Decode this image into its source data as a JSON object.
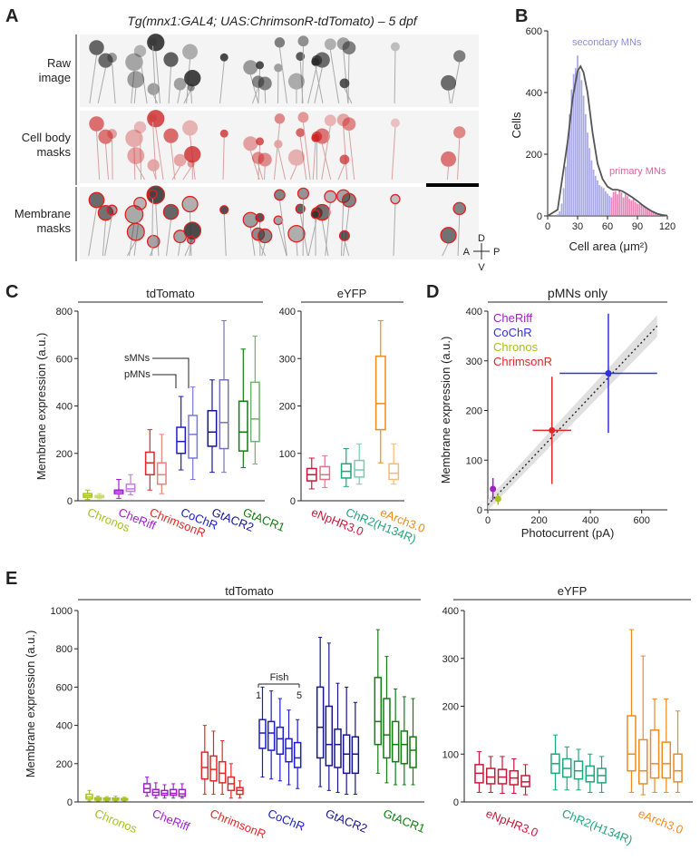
{
  "panels": {
    "A": {
      "letter": "A",
      "title": "Tg(mnx1:GAL4; UAS:ChrimsonR-tdTomato) – 5 dpf",
      "row_labels": [
        [
          "Raw",
          "image"
        ],
        [
          "Cell body",
          "masks"
        ],
        [
          "Membrane",
          "masks"
        ]
      ],
      "compass": {
        "up": "D",
        "down": "V",
        "left": "A",
        "right": "P"
      }
    },
    "B": {
      "letter": "B",
      "ylabel": "Cells",
      "xlabel": "Cell area (μm²)",
      "label_secondary": "secondary MNs",
      "label_primary": "primary MNs"
    },
    "C": {
      "letter": "C",
      "ylabel": "Membrane expression (a.u.)",
      "group_labels": [
        "tdTomato",
        "eYFP"
      ],
      "annot_s": "sMNs",
      "annot_p": "pMNs"
    },
    "D": {
      "letter": "D",
      "title": "pMNs only",
      "ylabel": "Membrane expression (a.u.)",
      "xlabel": "Photocurrent (pA)"
    },
    "E": {
      "letter": "E",
      "ylabel": "Membrane expression (a.u.)",
      "group_labels": [
        "tdTomato",
        "eYFP"
      ],
      "fish_label": "Fish",
      "fish_range": [
        "1",
        "5"
      ]
    }
  },
  "chart_data": [
    {
      "panel": "B",
      "type": "bar",
      "xlim": [
        0,
        120
      ],
      "ylim": [
        0,
        600
      ],
      "xticks": [
        0,
        30,
        60,
        90,
        120
      ],
      "yticks": [
        0,
        200,
        400,
        600
      ],
      "colors": {
        "secondary": "#8c8ce0",
        "primary": "#e060a0",
        "fit": "#555555"
      },
      "bins_x": [
        10,
        12,
        14,
        16,
        18,
        20,
        22,
        24,
        26,
        28,
        30,
        32,
        34,
        36,
        38,
        40,
        42,
        44,
        46,
        48,
        50,
        52,
        54,
        56,
        58,
        60,
        62,
        64,
        66,
        68,
        70,
        72,
        74,
        76,
        78,
        80,
        82,
        84,
        86,
        88,
        90,
        92,
        94,
        96,
        98,
        100,
        102,
        104,
        106,
        108,
        110,
        112,
        114,
        116
      ],
      "counts": [
        5,
        15,
        40,
        90,
        160,
        240,
        330,
        410,
        460,
        480,
        520,
        470,
        440,
        390,
        330,
        270,
        220,
        180,
        150,
        130,
        115,
        100,
        95,
        90,
        80,
        72,
        65,
        60,
        78,
        80,
        70,
        82,
        76,
        60,
        70,
        64,
        55,
        50,
        55,
        45,
        40,
        38,
        35,
        30,
        26,
        22,
        20,
        15,
        12,
        10,
        8,
        6,
        5,
        3
      ],
      "primary_threshold": 64,
      "fit_x": [
        0,
        10,
        20,
        25,
        30,
        33,
        36,
        40,
        45,
        50,
        55,
        60,
        65,
        70,
        75,
        80,
        85,
        90,
        95,
        100,
        105,
        110,
        115,
        120
      ],
      "fit_y": [
        0,
        20,
        240,
        380,
        470,
        485,
        465,
        400,
        270,
        170,
        120,
        95,
        85,
        85,
        80,
        70,
        60,
        48,
        35,
        24,
        14,
        7,
        3,
        1
      ]
    },
    {
      "panel": "C",
      "type": "box",
      "groups": [
        {
          "label": "tdTomato",
          "ylim": [
            0,
            800
          ],
          "yticks": [
            0,
            200,
            400,
            600,
            800
          ],
          "constructs": [
            {
              "name": "Chronos",
              "color": "#a8c020",
              "boxes": [
                [
                  5,
                  15,
                  22,
                  30,
                  45
                ],
                [
                  8,
                  14,
                  18,
                  22,
                  30
                ]
              ]
            },
            {
              "name": "CheRiff",
              "color": "#a020c8",
              "boxes": [
                [
                  10,
                  30,
                  38,
                  45,
                  90
                ],
                [
                  25,
                  40,
                  50,
                  70,
                  110
                ]
              ]
            },
            {
              "name": "ChrimsonR",
              "color": "#e02828",
              "boxes": [
                [
                  45,
                  110,
                  160,
                  205,
                  300
                ],
                [
                  30,
                  70,
                  110,
                  160,
                  280
                ]
              ]
            },
            {
              "name": "CoChR",
              "color": "#1c1cc8",
              "boxes": [
                [
                  130,
                  200,
                  250,
                  310,
                  440
                ],
                [
                  90,
                  180,
                  280,
                  360,
                  480
                ]
              ]
            },
            {
              "name": "GtACR2",
              "color": "#151590",
              "boxes": [
                [
                  120,
                  230,
                  290,
                  380,
                  510
                ],
                [
                  120,
                  220,
                  330,
                  510,
                  760
                ]
              ]
            },
            {
              "name": "GtACR1",
              "color": "#0f7d0f",
              "boxes": [
                [
                  140,
                  210,
                  290,
                  420,
                  640
                ],
                [
                  155,
                  250,
                  345,
                  500,
                  695
                ]
              ]
            }
          ]
        },
        {
          "label": "eYFP",
          "ylim": [
            0,
            400
          ],
          "yticks": [
            0,
            100,
            200,
            300,
            400
          ],
          "constructs": [
            {
              "name": "eNpHR3.0",
              "color": "#c81838",
              "boxes": [
                [
                  25,
                  42,
                  55,
                  68,
                  90
                ],
                [
                  28,
                  45,
                  55,
                  72,
                  95
                ]
              ]
            },
            {
              "name": "ChR2(H134R)",
              "color": "#1ca878",
              "boxes": [
                [
                  30,
                  48,
                  62,
                  78,
                  110
                ],
                [
                  35,
                  50,
                  65,
                  85,
                  120
                ]
              ]
            },
            {
              "name": "eArch3.0",
              "color": "#f08a1c",
              "boxes": [
                [
                  80,
                  150,
                  205,
                  305,
                  380
                ],
                [
                  35,
                  45,
                  58,
                  78,
                  120
                ]
              ]
            }
          ]
        }
      ]
    },
    {
      "panel": "D",
      "type": "scatter",
      "xlim": [
        0,
        700
      ],
      "ylim": [
        0,
        400
      ],
      "xticks": [
        0,
        200,
        400,
        600
      ],
      "yticks": [
        0,
        100,
        200,
        300,
        400
      ],
      "points": [
        {
          "name": "CheRiff",
          "color": "#a020c8",
          "x": 20,
          "y": 42,
          "xerr": 10,
          "yerr": 22
        },
        {
          "name": "CoChR",
          "color": "#3030dd",
          "x": 470,
          "y": 275,
          "xerr": 190,
          "yerr": 120
        },
        {
          "name": "Chronos",
          "color": "#a8c020",
          "x": 40,
          "y": 22,
          "xerr": 8,
          "yerr": 12
        },
        {
          "name": "ChrimsonR",
          "color": "#e02828",
          "x": 250,
          "y": 160,
          "xerr": 75,
          "yerr": 108
        }
      ],
      "fit": {
        "x": [
          0,
          660
        ],
        "y": [
          10,
          370
        ]
      }
    },
    {
      "panel": "E",
      "type": "box",
      "groups": [
        {
          "label": "tdTomato",
          "ylim": [
            0,
            1000
          ],
          "yticks": [
            0,
            200,
            400,
            600,
            800,
            1000
          ],
          "constructs": [
            {
              "name": "Chronos",
              "color": "#a8c020",
              "boxes": [
                [
                  5,
                  15,
                  25,
                  40,
                  60
                ],
                [
                  5,
                  10,
                  15,
                  22,
                  30
                ],
                [
                  5,
                  10,
                  15,
                  20,
                  28
                ],
                [
                  5,
                  10,
                  15,
                  20,
                  30
                ],
                [
                  5,
                  10,
                  14,
                  18,
                  25
                ]
              ]
            },
            {
              "name": "CheRiff",
              "color": "#a020c8",
              "boxes": [
                [
                  30,
                  50,
                  70,
                  95,
                  130
                ],
                [
                  20,
                  35,
                  50,
                  65,
                  100
                ],
                [
                  20,
                  35,
                  45,
                  60,
                  90
                ],
                [
                  20,
                  35,
                  45,
                  65,
                  95
                ],
                [
                  20,
                  30,
                  42,
                  65,
                  95
                ]
              ]
            },
            {
              "name": "ChrimsonR",
              "color": "#e02828",
              "boxes": [
                [
                  40,
                  120,
                  180,
                  260,
                  400
                ],
                [
                  40,
                  110,
                  170,
                  240,
                  370
                ],
                [
                  40,
                  100,
                  150,
                  210,
                  320
                ],
                [
                  20,
                  60,
                  95,
                  130,
                  200
                ],
                [
                  20,
                  40,
                  60,
                  75,
                  110
                ]
              ]
            },
            {
              "name": "CoChR",
              "color": "#1c1cc8",
              "boxes": [
                [
                  130,
                  280,
                  360,
                  430,
                  600
                ],
                [
                  120,
                  270,
                  360,
                  420,
                  580
                ],
                [
                  110,
                  250,
                  330,
                  390,
                  540
                ],
                [
                  90,
                  210,
                  280,
                  330,
                  480
                ],
                [
                  70,
                  180,
                  230,
                  310,
                  430
                ]
              ]
            },
            {
              "name": "GtACR2",
              "color": "#151590",
              "boxes": [
                [
                  80,
                  230,
                  390,
                  600,
                  860
                ],
                [
                  60,
                  190,
                  300,
                  500,
                  830
                ],
                [
                  50,
                  180,
                  300,
                  380,
                  620
                ],
                [
                  40,
                  150,
                  250,
                  350,
                  600
                ],
                [
                  40,
                  150,
                  250,
                  340,
                  520
                ]
              ]
            },
            {
              "name": "GtACR1",
              "color": "#0f7d0f",
              "boxes": [
                [
                  150,
                  300,
                  420,
                  650,
                  900
                ],
                [
                  100,
                  230,
                  350,
                  540,
                  760
                ],
                [
                  90,
                  210,
                  300,
                  420,
                  590
                ],
                [
                  90,
                  200,
                  300,
                  370,
                  550
                ],
                [
                  90,
                  180,
                  270,
                  340,
                  540
                ]
              ]
            }
          ]
        },
        {
          "label": "eYFP",
          "ylim": [
            0,
            400
          ],
          "yticks": [
            0,
            100,
            200,
            300,
            400
          ],
          "constructs": [
            {
              "name": "eNpHR3.0",
              "color": "#c81838",
              "boxes": [
                [
                  20,
                  40,
                  60,
                  78,
                  105
                ],
                [
                  20,
                  38,
                  52,
                  70,
                  95
                ],
                [
                  18,
                  38,
                  52,
                  68,
                  95
                ],
                [
                  18,
                  36,
                  50,
                  65,
                  90
                ],
                [
                  15,
                  32,
                  42,
                  55,
                  78
                ]
              ]
            },
            {
              "name": "ChR2(H134R)",
              "color": "#1ca878",
              "boxes": [
                [
                  25,
                  60,
                  80,
                  100,
                  140
                ],
                [
                  25,
                  52,
                  70,
                  90,
                  115
                ],
                [
                  25,
                  48,
                  65,
                  85,
                  110
                ],
                [
                  20,
                  42,
                  55,
                  75,
                  100
                ],
                [
                  20,
                  40,
                  55,
                  70,
                  95
                ]
              ]
            },
            {
              "name": "eArch3.0",
              "color": "#f08a1c",
              "boxes": [
                [
                  20,
                  65,
                  100,
                  180,
                  360
                ],
                [
                  15,
                  38,
                  65,
                  130,
                  305
                ],
                [
                  20,
                  50,
                  80,
                  150,
                  215
                ],
                [
                  20,
                  50,
                  80,
                  125,
                  215
                ],
                [
                  20,
                  42,
                  65,
                  100,
                  190
                ]
              ]
            }
          ]
        }
      ]
    }
  ]
}
